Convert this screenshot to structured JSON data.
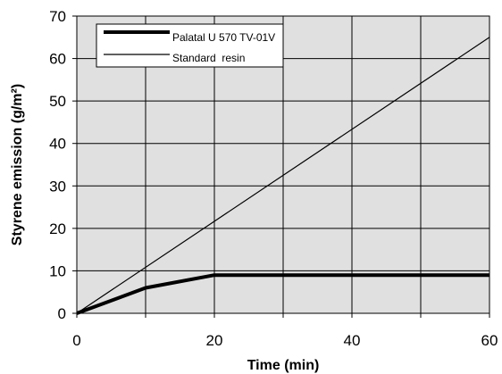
{
  "chart_data": {
    "type": "line",
    "title": "",
    "xlabel": "Time (min)",
    "ylabel": "Styrene emission (g/m²)",
    "xlim": [
      0,
      60
    ],
    "ylim": [
      0,
      70
    ],
    "x_ticks": [
      "0",
      "20",
      "40",
      "60"
    ],
    "y_ticks": [
      "0",
      "10",
      "20",
      "30",
      "40",
      "50",
      "60",
      "70"
    ],
    "grid": true,
    "plot_background": "#e0e0e0",
    "legend_position": "top-left",
    "series": [
      {
        "name": "Palatal U 570 TV-01V",
        "color": "#000000",
        "style": "thick",
        "points": [
          [
            0,
            0
          ],
          [
            10,
            6
          ],
          [
            20,
            9
          ],
          [
            60,
            9
          ]
        ]
      },
      {
        "name": "Standard  resin",
        "color": "#000000",
        "style": "thin",
        "points": [
          [
            0,
            0
          ],
          [
            60,
            65
          ]
        ]
      }
    ]
  }
}
